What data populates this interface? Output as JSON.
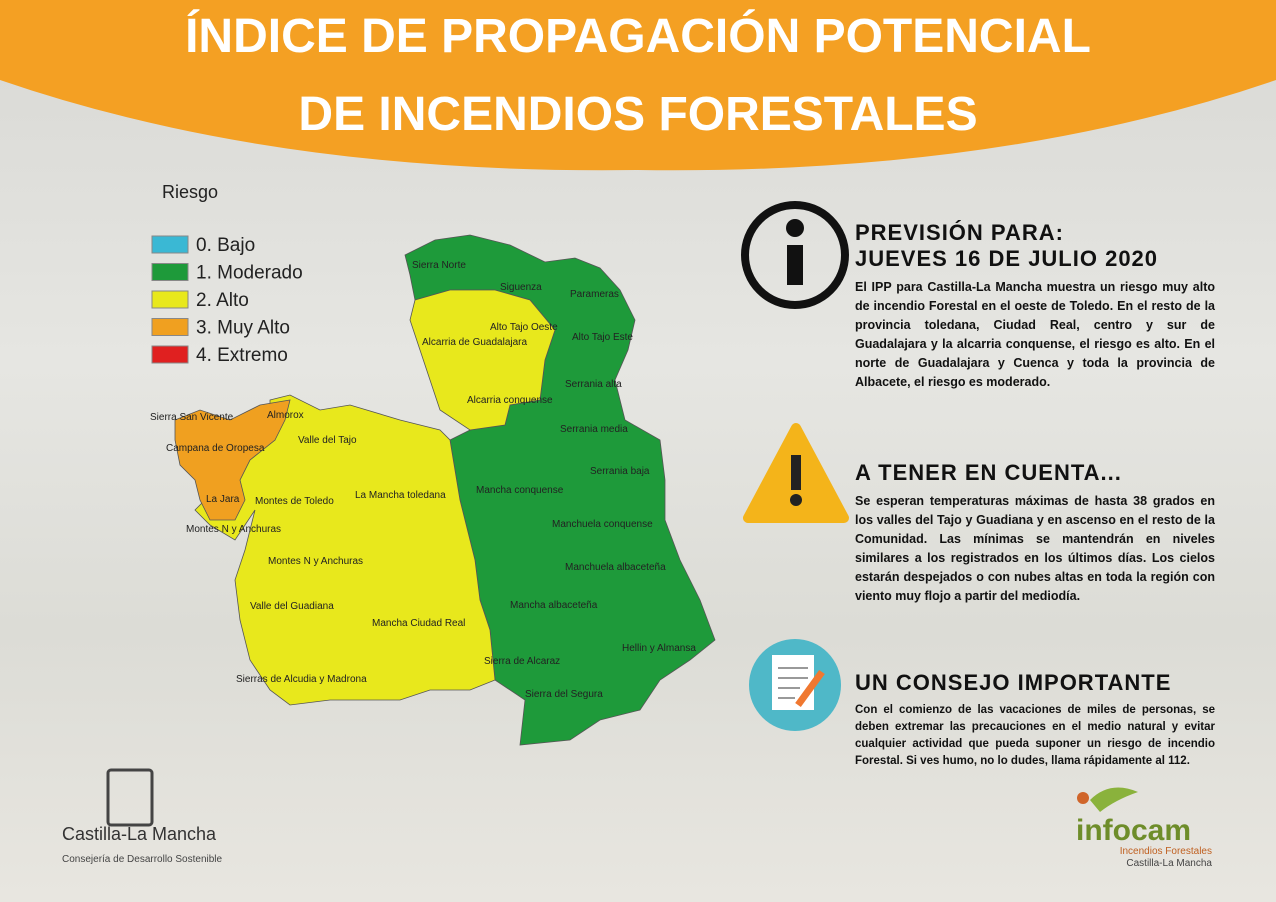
{
  "header": {
    "title_line1": "ÍNDICE DE PROPAGACIÓN POTENCIAL",
    "title_line2": "DE INCENDIOS FORESTALES"
  },
  "legend": {
    "title": "Riesgo",
    "items": [
      {
        "label": "0. Bajo",
        "color": "#3ab8d4"
      },
      {
        "label": "1. Moderado",
        "color": "#1e9a3a"
      },
      {
        "label": "2. Alto",
        "color": "#e8e81c"
      },
      {
        "label": "3. Muy Alto",
        "color": "#f0a020"
      },
      {
        "label": "4. Extremo",
        "color": "#e02020"
      }
    ]
  },
  "map": {
    "regions": [
      {
        "label": "Sierra Norte"
      },
      {
        "label": "Siguenza"
      },
      {
        "label": "Parameras"
      },
      {
        "label": "Alto Tajo Oeste"
      },
      {
        "label": "Alto Tajo Este"
      },
      {
        "label": "Alcarria de Guadalajara"
      },
      {
        "label": "Serrania alta"
      },
      {
        "label": "Alcarria conquense"
      },
      {
        "label": "Sierra San Vicente"
      },
      {
        "label": "Almorox"
      },
      {
        "label": "Valle del Tajo"
      },
      {
        "label": "Campana de Oropesa"
      },
      {
        "label": "Serrania media"
      },
      {
        "label": "Serrania baja"
      },
      {
        "label": "La Jara"
      },
      {
        "label": "Montes de Toledo"
      },
      {
        "label": "La Mancha toledana"
      },
      {
        "label": "Mancha conquense"
      },
      {
        "label": "Montes N y Anchuras"
      },
      {
        "label": "Manchuela conquense"
      },
      {
        "label": "Montes N y Anchuras"
      },
      {
        "label": "Manchuela albaceteña"
      },
      {
        "label": "Valle del Guadiana"
      },
      {
        "label": "Mancha albaceteña"
      },
      {
        "label": "Mancha Ciudad Real"
      },
      {
        "label": "Hellin y Almansa"
      },
      {
        "label": "Sierra de Alcaraz"
      },
      {
        "label": "Sierras de Alcudia y Madrona"
      },
      {
        "label": "Sierra del Segura"
      }
    ]
  },
  "sections": [
    {
      "title": "PREVISIÓN PARA:",
      "subtitle": "JUEVES 16 DE JULIO 2020",
      "text": "El IPP para Castilla-La Mancha muestra un riesgo muy alto de incendio Forestal en el oeste de Toledo. En el resto de la provincia toledana, Ciudad Real, centro y sur de Guadalajara y la alcarria conquense, el riesgo es alto. En el norte de Guadalajara y Cuenca y toda la provincia de Albacete, el riesgo es moderado."
    },
    {
      "title": "A TENER EN CUENTA...",
      "text": "Se esperan temperaturas máximas de hasta 38 grados en los valles del Tajo y Guadiana y en ascenso en el resto de la Comunidad. Las mínimas se mantendrán en niveles similares a los registrados en los últimos días. Los cielos estarán despejados o con nubes altas en toda la región con viento muy flojo a partir del mediodía."
    },
    {
      "title": "UN CONSEJO IMPORTANTE",
      "text": "Con el comienzo de las vacaciones de miles de personas, se deben extremar las precauciones en el medio natural y evitar cualquier actividad que pueda suponer un riesgo de incendio Forestal. Si ves humo, no lo dudes, llama rápidamente al 112."
    }
  ],
  "logos": {
    "left_name": "Castilla-La Mancha",
    "left_sub": "Consejería de Desarrollo Sostenible",
    "right_name": "infocam",
    "right_sub1": "Incendios Forestales",
    "right_sub2": "Castilla-La Mancha"
  }
}
